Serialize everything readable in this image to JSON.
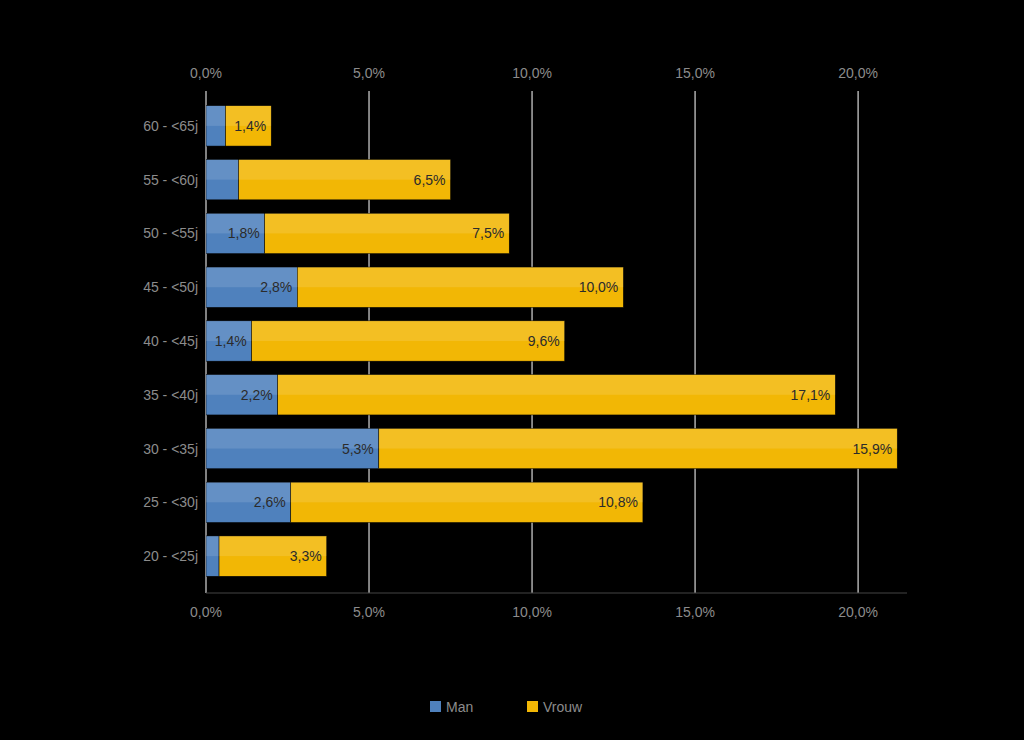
{
  "chart_data": {
    "type": "bar",
    "orientation": "horizontal",
    "stacked": true,
    "data_labels": true,
    "grid": true,
    "legend": "bottom",
    "categories": [
      "20 - <25j",
      "25 - <30j",
      "30 - <35j",
      "35 - <40j",
      "40 - <45j",
      "45 - <50j",
      "50 - <55j",
      "55 - <60j",
      "60 - <65j"
    ],
    "series": [
      {
        "name": "Man",
        "color": "#4f81bd",
        "values": [
          0.4,
          2.6,
          5.3,
          2.2,
          1.4,
          2.8,
          1.8,
          1.0,
          0.6
        ],
        "value_labels": [
          null,
          "2,6%",
          "5,3%",
          "2,2%",
          "1,4%",
          "2,8%",
          "1,8%",
          null,
          null
        ]
      },
      {
        "name": "Vrouw",
        "color": "#f2b705",
        "values": [
          3.3,
          10.8,
          15.9,
          17.1,
          9.6,
          10.0,
          7.5,
          6.5,
          1.4
        ],
        "value_labels": [
          "3,3%",
          "10,8%",
          "15,9%",
          "17,1%",
          "9,6%",
          "10,0%",
          "7,5%",
          "6,5%",
          "1,4%"
        ]
      }
    ],
    "xlim": [
      0,
      21.5
    ],
    "xticks": [
      {
        "value": 0,
        "label": "0,0%"
      },
      {
        "value": 5,
        "label": "5,0%"
      },
      {
        "value": 10,
        "label": "10,0%"
      },
      {
        "value": 15,
        "label": "15,0%"
      },
      {
        "value": 20,
        "label": "20,0%"
      }
    ]
  }
}
